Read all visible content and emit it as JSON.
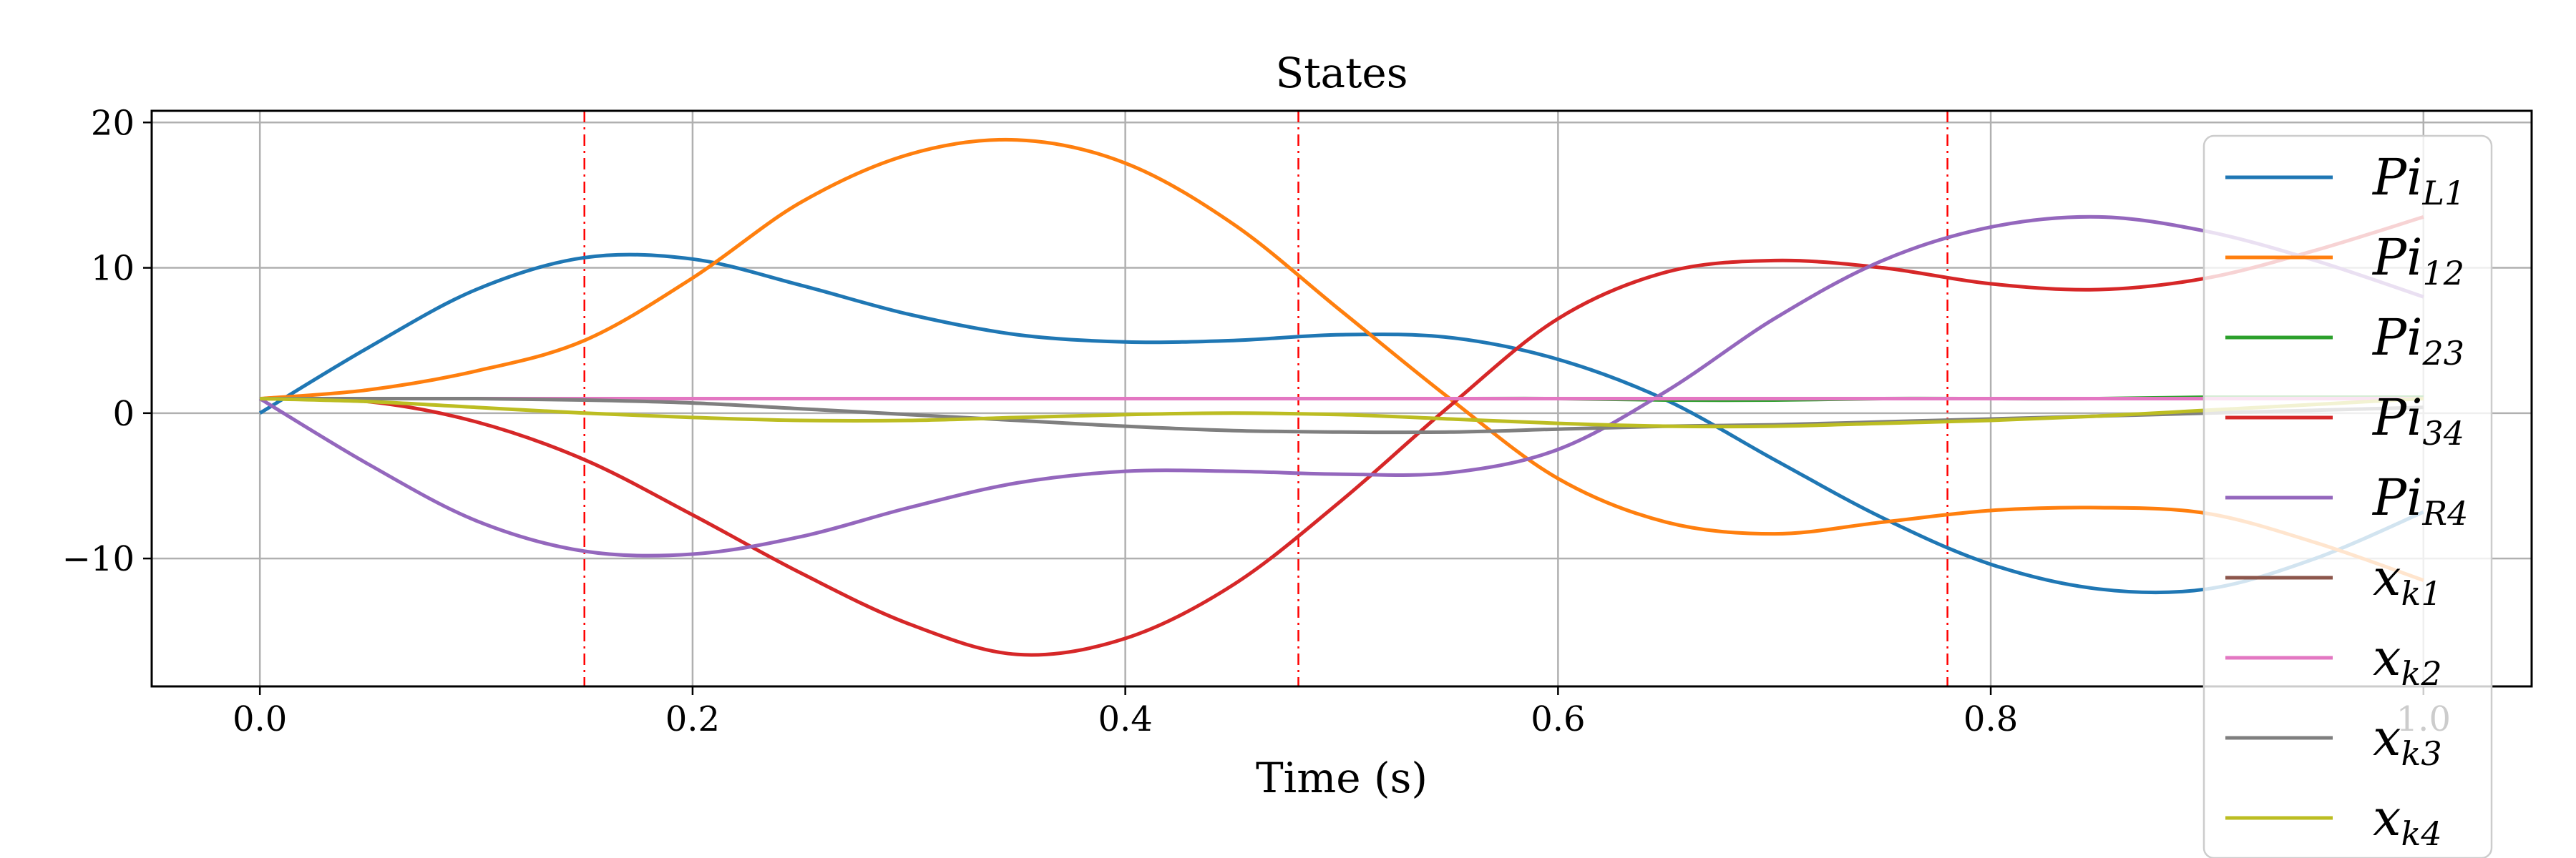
{
  "chart_data": {
    "type": "line",
    "title": "States",
    "xlabel": "Time (s)",
    "ylabel": "",
    "xlim": [
      -0.05,
      1.05
    ],
    "ylim": [
      -18.8,
      20.8
    ],
    "x_ticks": [
      0.0,
      0.2,
      0.4,
      0.6,
      0.8,
      1.0
    ],
    "x_tick_labels": [
      "0.0",
      "0.2",
      "0.4",
      "0.6",
      "0.8",
      "1.0"
    ],
    "y_ticks": [
      -10,
      0,
      10,
      20
    ],
    "y_tick_labels": [
      "−10",
      "0",
      "10",
      "20"
    ],
    "grid": true,
    "legend_position": "right",
    "vlines": {
      "x": [
        0.15,
        0.48,
        0.78
      ],
      "color": "#ff0000",
      "style": "dash-dot"
    },
    "x": [
      0.0,
      0.05,
      0.1,
      0.15,
      0.2,
      0.25,
      0.3,
      0.35,
      0.4,
      0.45,
      0.5,
      0.55,
      0.6,
      0.65,
      0.7,
      0.75,
      0.8,
      0.85,
      0.9,
      0.95,
      1.0
    ],
    "series": [
      {
        "name": "Pi",
        "sub": "L1",
        "color": "#1f77b4",
        "values": [
          0.0,
          4.5,
          8.5,
          10.7,
          10.6,
          8.8,
          6.8,
          5.4,
          4.9,
          5.0,
          5.4,
          5.2,
          3.7,
          0.9,
          -3.2,
          -7.2,
          -10.4,
          -12.1,
          -12.1,
          -10.0,
          -6.8
        ]
      },
      {
        "name": "Pi",
        "sub": "12",
        "color": "#ff7f0e",
        "values": [
          1.0,
          1.6,
          2.9,
          5.0,
          9.3,
          14.5,
          17.8,
          18.8,
          17.2,
          13.0,
          7.0,
          1.0,
          -4.5,
          -7.5,
          -8.3,
          -7.5,
          -6.7,
          -6.5,
          -6.9,
          -8.9,
          -11.5
        ]
      },
      {
        "name": "Pi",
        "sub": "23",
        "color": "#2ca02c",
        "values": [
          1.0,
          1.0,
          1.0,
          1.0,
          1.0,
          1.0,
          1.0,
          1.0,
          1.0,
          1.0,
          1.0,
          1.0,
          1.0,
          0.9,
          0.9,
          1.0,
          1.0,
          1.0,
          1.1,
          1.1,
          1.1
        ]
      },
      {
        "name": "Pi",
        "sub": "34",
        "color": "#d62728",
        "values": [
          1.0,
          0.8,
          -0.6,
          -3.2,
          -7.0,
          -11.0,
          -14.5,
          -16.6,
          -15.5,
          -11.8,
          -6.0,
          0.5,
          6.5,
          9.7,
          10.5,
          10.0,
          8.9,
          8.5,
          9.3,
          11.2,
          13.5
        ]
      },
      {
        "name": "Pi",
        "sub": "R4",
        "color": "#9467bd",
        "values": [
          1.0,
          -3.5,
          -7.4,
          -9.5,
          -9.7,
          -8.5,
          -6.5,
          -4.8,
          -4.0,
          -4.0,
          -4.2,
          -4.1,
          -2.5,
          1.5,
          6.5,
          10.5,
          12.8,
          13.5,
          12.5,
          10.5,
          8.0
        ]
      },
      {
        "name": "x",
        "sub": "k1",
        "color": "#8c564b",
        "values": [
          1.0,
          1.0,
          1.0,
          1.0,
          1.0,
          1.0,
          1.0,
          1.0,
          1.0,
          1.0,
          1.0,
          1.0,
          1.0,
          1.0,
          1.0,
          1.0,
          1.0,
          1.0,
          1.0,
          1.0,
          1.0
        ]
      },
      {
        "name": "x",
        "sub": "k2",
        "color": "#e377c2",
        "values": [
          1.0,
          1.0,
          1.0,
          1.0,
          1.0,
          1.0,
          1.0,
          1.0,
          1.0,
          1.0,
          1.0,
          1.0,
          1.0,
          1.0,
          1.0,
          1.0,
          1.0,
          1.0,
          1.0,
          1.0,
          1.0
        ]
      },
      {
        "name": "x",
        "sub": "k3",
        "color": "#7f7f7f",
        "values": [
          1.0,
          1.0,
          1.0,
          0.9,
          0.7,
          0.3,
          -0.1,
          -0.5,
          -0.9,
          -1.2,
          -1.3,
          -1.3,
          -1.1,
          -0.9,
          -0.8,
          -0.6,
          -0.4,
          -0.2,
          0.0,
          0.2,
          0.4
        ]
      },
      {
        "name": "x",
        "sub": "k4",
        "color": "#bcbd22",
        "values": [
          1.0,
          0.8,
          0.4,
          0.0,
          -0.3,
          -0.5,
          -0.5,
          -0.3,
          -0.1,
          0.0,
          -0.1,
          -0.4,
          -0.7,
          -0.9,
          -0.9,
          -0.7,
          -0.5,
          -0.2,
          0.2,
          0.6,
          1.0
        ]
      }
    ]
  }
}
